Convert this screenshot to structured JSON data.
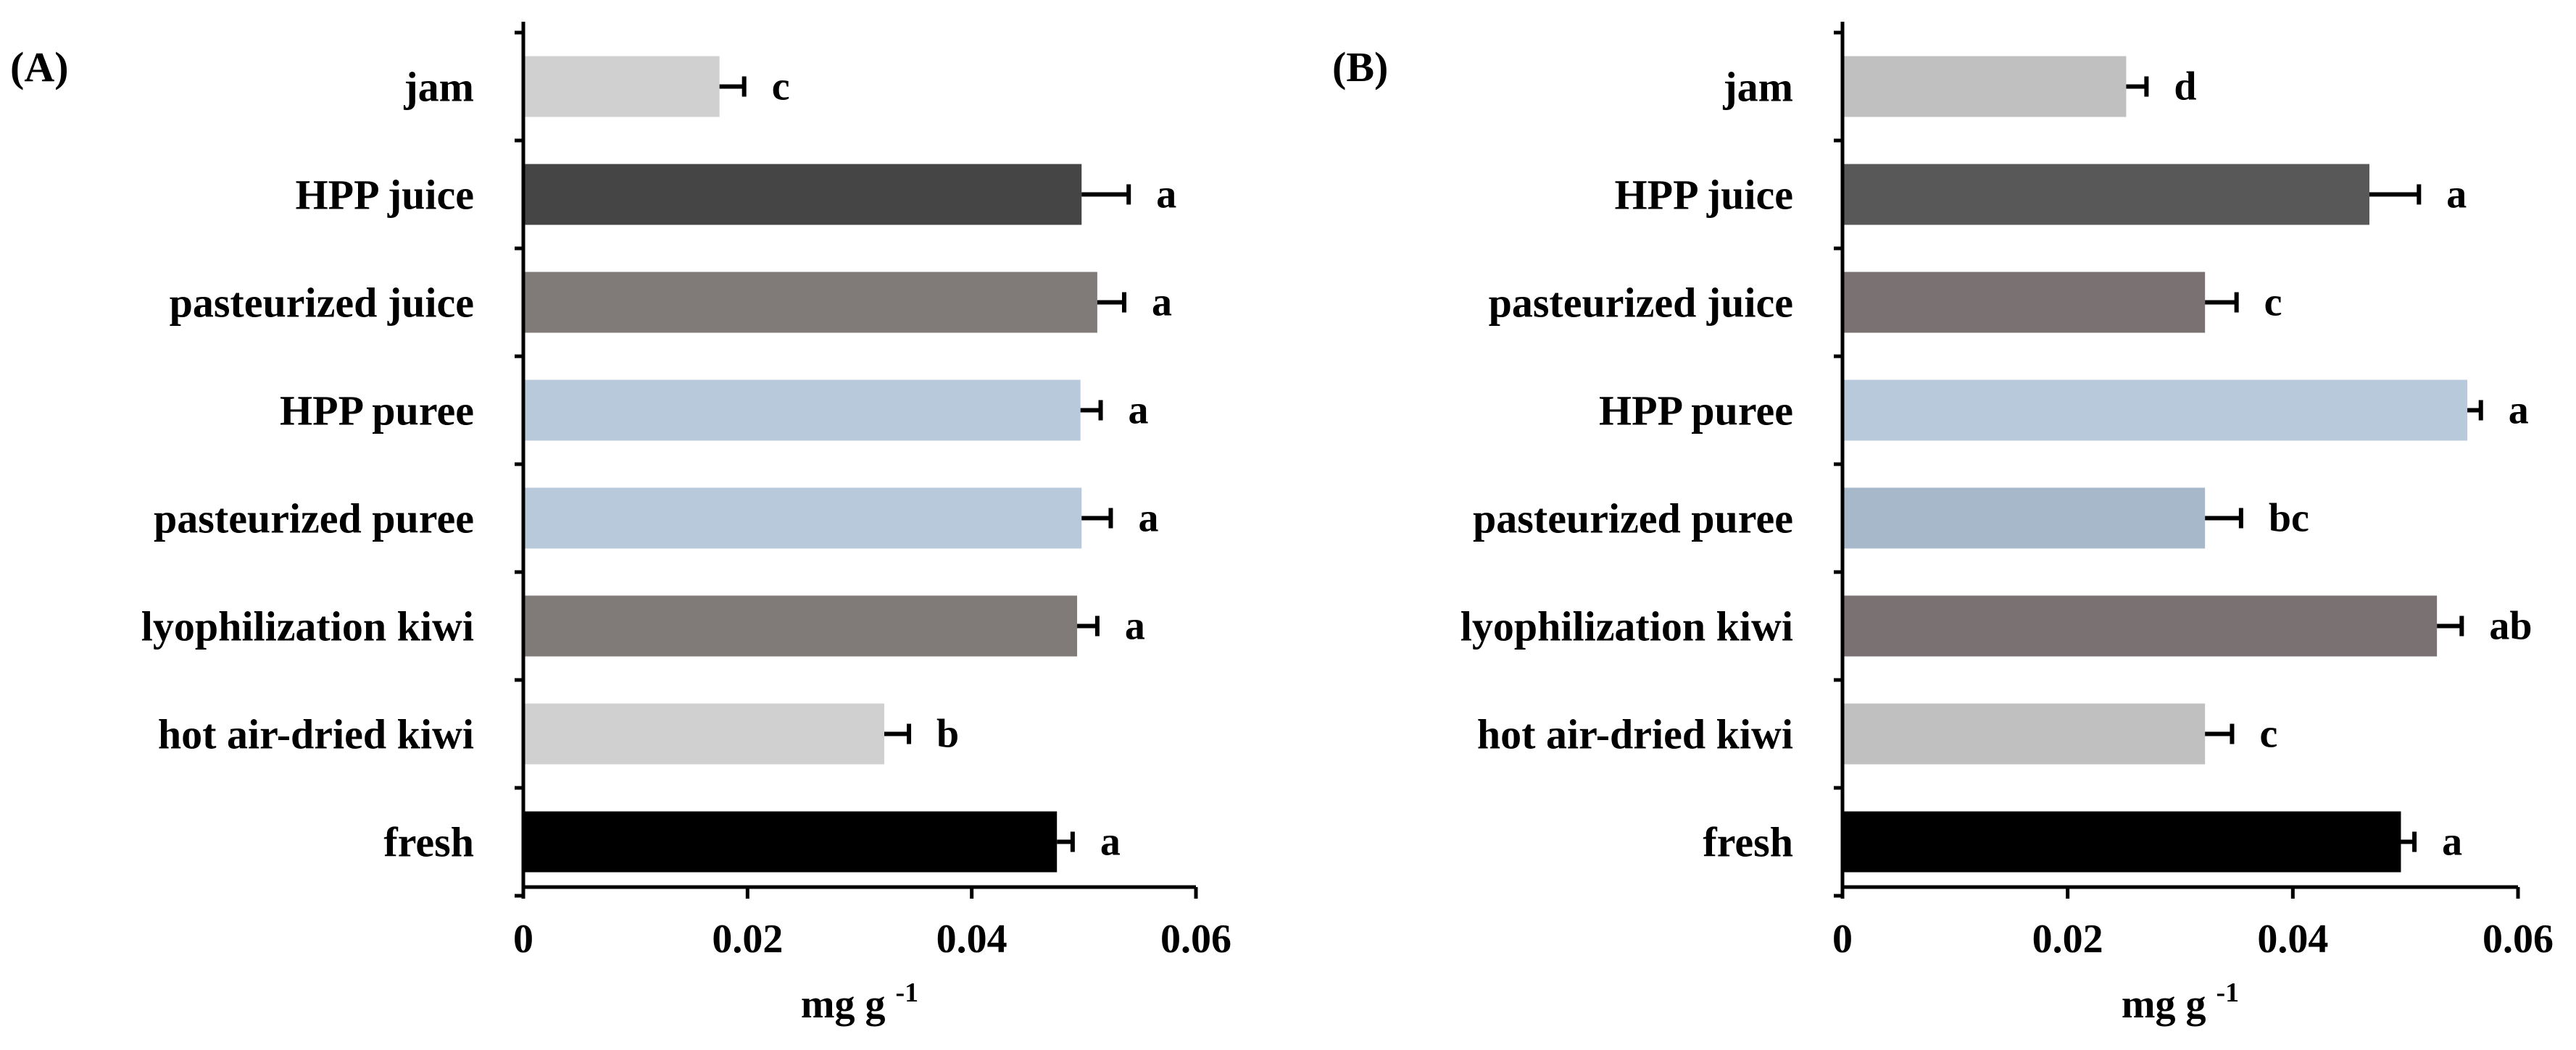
{
  "chart_data": [
    {
      "type": "bar",
      "orientation": "horizontal",
      "panel_label": "(A)",
      "xlabel": "mg g",
      "xlabel_superscript": "-1",
      "xlim": [
        0,
        0.06
      ],
      "xticks": [
        "0",
        "0.02",
        "0.04",
        "0.06"
      ],
      "grid": false,
      "categories": [
        "jam",
        "HPP juice",
        "pasteurized juice",
        "HPP puree",
        "pasteurized puree",
        "lyophilization kiwi",
        "hot air-dried kiwi",
        "fresh"
      ],
      "values": [
        0.0175,
        0.0498,
        0.0512,
        0.0497,
        0.0498,
        0.0494,
        0.0322,
        0.0476
      ],
      "errors": [
        0.0022,
        0.0042,
        0.0024,
        0.0018,
        0.0026,
        0.0018,
        0.0022,
        0.0014
      ],
      "significance": [
        "c",
        "a",
        "a",
        "a",
        "a",
        "a",
        "b",
        "a"
      ],
      "colors": [
        "#d0d0d0",
        "#454545",
        "#807b79",
        "#b8c9dc",
        "#b8c9dc",
        "#807b79",
        "#d0d0d0",
        "#000000"
      ]
    },
    {
      "type": "bar",
      "orientation": "horizontal",
      "panel_label": "(B)",
      "xlabel": "mg g",
      "xlabel_superscript": "-1",
      "xlim": [
        0,
        0.06
      ],
      "xticks": [
        "0",
        "0.02",
        "0.04",
        "0.06"
      ],
      "grid": false,
      "categories": [
        "jam",
        "HPP juice",
        "pasteurized juice",
        "HPP puree",
        "pasteurized puree",
        "lyophilization kiwi",
        "hot air-dried kiwi",
        "fresh"
      ],
      "values": [
        0.0252,
        0.0468,
        0.0322,
        0.0555,
        0.0322,
        0.0528,
        0.0322,
        0.0496
      ],
      "errors": [
        0.0018,
        0.0044,
        0.0028,
        0.0012,
        0.0032,
        0.0022,
        0.0024,
        0.0012
      ],
      "significance": [
        "d",
        "a",
        "c",
        "a",
        "bc",
        "ab",
        "c",
        "a"
      ],
      "colors": [
        "#c0c0c0",
        "#585858",
        "#7a7172",
        "#b8c9dc",
        "#a8b8cb",
        "#7a7172",
        "#c0c0c0",
        "#000000"
      ]
    }
  ]
}
